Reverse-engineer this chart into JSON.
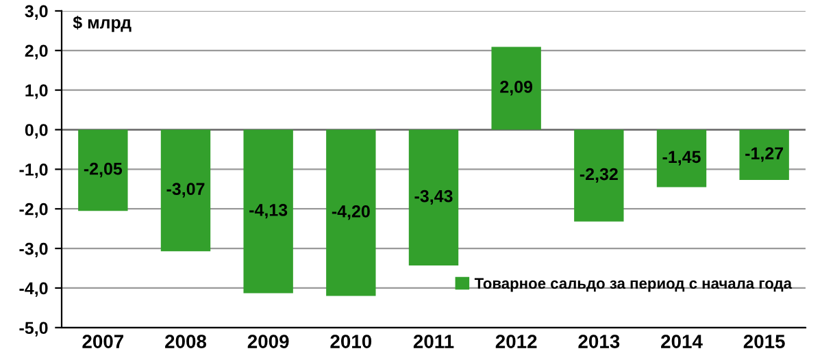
{
  "chart_data": {
    "type": "bar",
    "ylabel": "$ млрд",
    "categories": [
      "2007",
      "2008",
      "2009",
      "2010",
      "2011",
      "2012",
      "2013",
      "2014",
      "2015"
    ],
    "series": [
      {
        "name": "Товарное сальдо за период с начала года",
        "color": "#33a02c",
        "values": [
          -2.05,
          -3.07,
          -4.13,
          -4.2,
          -3.43,
          2.09,
          -2.32,
          -1.45,
          -1.27
        ],
        "value_labels": [
          "-2,05",
          "-3,07",
          "-4,13",
          "-4,20",
          "-3,43",
          "2,09",
          "-2,32",
          "-1,45",
          "-1,27"
        ]
      }
    ],
    "ylim": [
      -5,
      3
    ],
    "yticks": [
      {
        "value": -5,
        "label": "-5,0"
      },
      {
        "value": -4,
        "label": "-4,0"
      },
      {
        "value": -3,
        "label": "-3,0"
      },
      {
        "value": -2,
        "label": "-2,0"
      },
      {
        "value": -1,
        "label": "-1,0"
      },
      {
        "value": 0,
        "label": "0,0"
      },
      {
        "value": 1,
        "label": "1,0"
      },
      {
        "value": 2,
        "label": "2,0"
      },
      {
        "value": 3,
        "label": "3,0"
      }
    ],
    "grid": "y",
    "legend": "bottom right"
  }
}
